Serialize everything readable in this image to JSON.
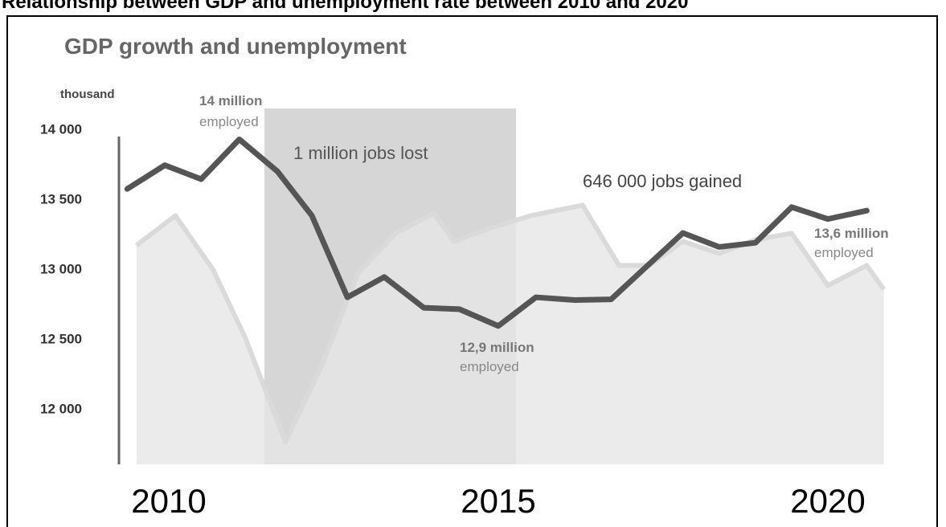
{
  "title": "Relationship between GDP and unemployment rate between 2010 and 2020",
  "chart_data": {
    "type": "line",
    "title": "GDP growth and unemployment",
    "y_unit": "thousand",
    "xlim": [
      2009,
      2021
    ],
    "xticks": [
      2010,
      2015,
      2020
    ],
    "ylim": [
      11600,
      14100
    ],
    "yticks": [
      {
        "value": 12000,
        "label": "12 000"
      },
      {
        "value": 12500,
        "label": "12 500"
      },
      {
        "value": 13000,
        "label": "13 000"
      },
      {
        "value": 13500,
        "label": "13 500"
      },
      {
        "value": 14000,
        "label": "14 000"
      }
    ],
    "shaded_region": {
      "x": [
        2011.45,
        2015.27
      ],
      "label": "1 million jobs lost",
      "color": "#cfcfcf"
    },
    "series": [
      {
        "color": "#e6e6e6",
        "area": true,
        "x": [
          2009.51,
          2010.1,
          2010.67,
          2011.16,
          2011.77,
          2012.32,
          2012.87,
          2013.44,
          2014.02,
          2014.33,
          2014.9,
          2015.49,
          2016.28,
          2016.83,
          2017.29,
          2017.8,
          2018.35,
          2018.9,
          2019.45,
          2020.0,
          2020.59,
          2020.85
        ],
        "values": [
          13167,
          13379,
          12994,
          12506,
          11759,
          12305,
          12966,
          13253,
          13397,
          13195,
          13293,
          13379,
          13454,
          13023,
          13023,
          13195,
          13109,
          13207,
          13253,
          12879,
          13023,
          12851
        ]
      },
      {
        "color": "#555555",
        "area": false,
        "x": [
          2009.37,
          2009.94,
          2010.49,
          2011.07,
          2011.65,
          2012.17,
          2012.71,
          2013.27,
          2013.87,
          2014.41,
          2015.0,
          2015.57,
          2016.16,
          2016.71,
          2017.26,
          2017.8,
          2018.35,
          2018.9,
          2019.45,
          2020.0,
          2020.59
        ],
        "values": [
          13570,
          13740,
          13640,
          13925,
          13695,
          13380,
          12795,
          12940,
          12720,
          12710,
          12590,
          12795,
          12775,
          12780,
          13020,
          13255,
          13155,
          13185,
          13440,
          13355,
          13415
        ]
      }
    ],
    "annotations": [
      "14 million",
      "employed",
      "646 000 jobs gained",
      "12,9 million",
      "employed",
      "13,6 million",
      "employed"
    ]
  }
}
